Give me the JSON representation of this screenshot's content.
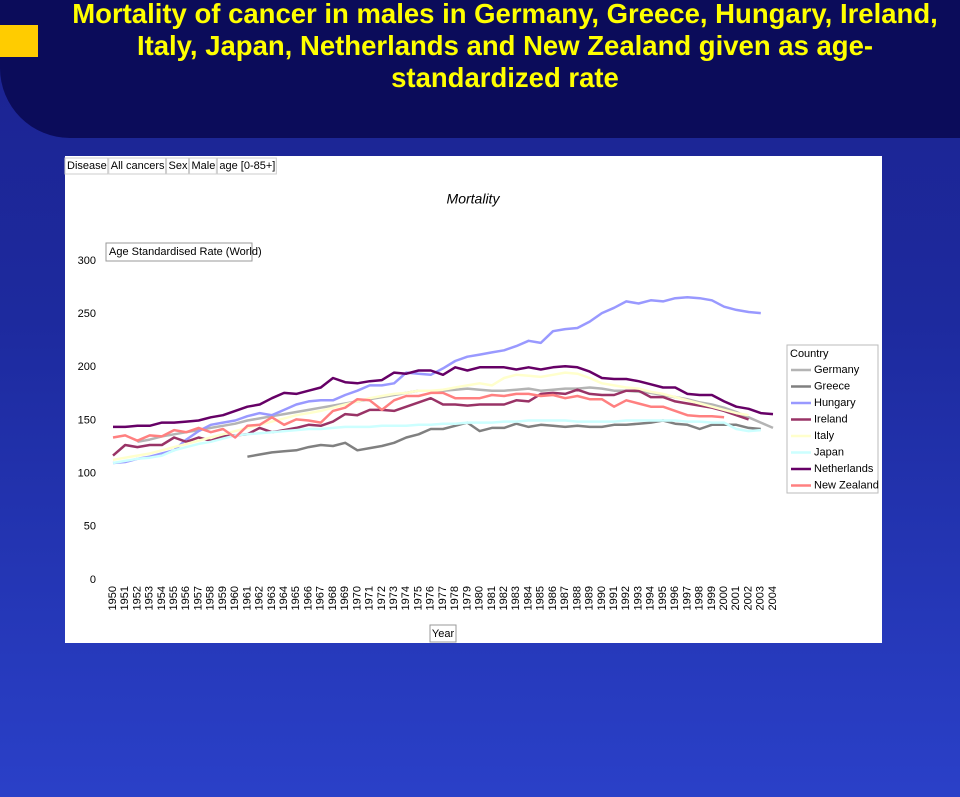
{
  "chart_data": {
    "type": "line",
    "title": "Mortality of cancer in males in Germany, Greece, Hungary, Ireland, Italy, Japan, Netherlands and New Zealand  given as age-standardized rate",
    "filters": [
      "Disease",
      "All cancers",
      "Sex",
      "Male",
      "age [0-85+]"
    ],
    "subtitle": "Mortality",
    "ylabel": "Age Standardised Rate (World)",
    "xlabel": "Year",
    "legend_title": "Country",
    "categories": [
      "1950",
      "1951",
      "1952",
      "1953",
      "1954",
      "1955",
      "1956",
      "1957",
      "1958",
      "1959",
      "1960",
      "1961",
      "1962",
      "1963",
      "1964",
      "1965",
      "1966",
      "1967",
      "1968",
      "1969",
      "1970",
      "1971",
      "1972",
      "1973",
      "1974",
      "1975",
      "1976",
      "1977",
      "1978",
      "1979",
      "1980",
      "1981",
      "1982",
      "1983",
      "1984",
      "1985",
      "1986",
      "1987",
      "1988",
      "1989",
      "1990",
      "1991",
      "1992",
      "1993",
      "1994",
      "1995",
      "1996",
      "1997",
      "1998",
      "1999",
      "2000",
      "2001",
      "2002",
      "2003",
      "2004"
    ],
    "ylim": [
      0,
      300
    ],
    "yticks": [
      0,
      50,
      100,
      150,
      200,
      250,
      300
    ],
    "series": [
      {
        "name": "Germany",
        "color": "#b4b4b4",
        "values": [
          null,
          null,
          130,
          132,
          135,
          137,
          139,
          141,
          143,
          145,
          147,
          150,
          152,
          154,
          156,
          158,
          160,
          162,
          164,
          166,
          168,
          170,
          172,
          174,
          176,
          178,
          178,
          178,
          179,
          180,
          179,
          178,
          178,
          179,
          180,
          178,
          179,
          180,
          180,
          181,
          180,
          178,
          178,
          177,
          176,
          174,
          172,
          170,
          167,
          165,
          162,
          158,
          153,
          148,
          143
        ]
      },
      {
        "name": "Greece",
        "color": "#808080",
        "values": [
          null,
          null,
          null,
          null,
          null,
          null,
          null,
          null,
          null,
          null,
          null,
          116,
          118,
          120,
          121,
          122,
          125,
          127,
          126,
          129,
          122,
          124,
          126,
          129,
          134,
          137,
          142,
          142,
          145,
          148,
          140,
          143,
          143,
          147,
          144,
          146,
          145,
          144,
          145,
          144,
          144,
          146,
          146,
          147,
          148,
          150,
          147,
          146,
          142,
          146,
          146,
          146,
          143,
          142,
          null
        ]
      },
      {
        "name": "Hungary",
        "color": "#9999ff",
        "values": [
          110,
          111,
          114,
          116,
          119,
          122,
          132,
          140,
          146,
          148,
          150,
          154,
          157,
          155,
          160,
          165,
          168,
          169,
          169,
          174,
          178,
          183,
          183,
          185,
          195,
          194,
          193,
          199,
          206,
          210,
          212,
          214,
          216,
          220,
          225,
          223,
          234,
          236,
          237,
          243,
          251,
          256,
          262,
          260,
          263,
          262,
          265,
          266,
          265,
          263,
          257,
          254,
          252,
          251,
          null
        ]
      },
      {
        "name": "Ireland",
        "color": "#993366",
        "values": [
          117,
          127,
          125,
          127,
          127,
          134,
          130,
          134,
          131,
          135,
          136,
          137,
          143,
          139,
          141,
          143,
          146,
          145,
          149,
          156,
          155,
          160,
          160,
          159,
          163,
          167,
          171,
          165,
          165,
          164,
          165,
          165,
          165,
          169,
          168,
          175,
          176,
          175,
          179,
          175,
          174,
          174,
          178,
          178,
          172,
          172,
          168,
          166,
          164,
          162,
          159,
          155,
          151,
          null,
          null
        ]
      },
      {
        "name": "Italy",
        "color": "#ffffcc",
        "values": [
          113,
          115,
          117,
          119,
          122,
          125,
          128,
          131,
          134,
          137,
          140,
          143,
          146,
          149,
          152,
          155,
          157,
          159,
          162,
          165,
          168,
          171,
          173,
          175,
          176,
          178,
          178,
          179,
          181,
          183,
          185,
          183,
          190,
          193,
          192,
          191,
          193,
          195,
          194,
          190,
          185,
          183,
          181,
          180,
          177,
          175,
          172,
          169,
          166,
          163,
          160,
          157,
          155,
          null,
          null
        ]
      },
      {
        "name": "Japan",
        "color": "#ccffff",
        "values": [
          110,
          112,
          114,
          115,
          117,
          122,
          125,
          128,
          130,
          133,
          136,
          137,
          138,
          139,
          140,
          141,
          142,
          142,
          143,
          144,
          144,
          144,
          145,
          145,
          145,
          146,
          146,
          147,
          147,
          148,
          148,
          148,
          149,
          149,
          150,
          150,
          150,
          150,
          149,
          149,
          149,
          149,
          150,
          150,
          150,
          150,
          150,
          149,
          149,
          148,
          148,
          142,
          140,
          141,
          null
        ]
      },
      {
        "name": "Netherlands",
        "color": "#660066",
        "values": [
          144,
          144,
          145,
          145,
          148,
          148,
          149,
          150,
          153,
          155,
          159,
          163,
          165,
          171,
          176,
          175,
          178,
          181,
          190,
          186,
          185,
          187,
          188,
          195,
          194,
          197,
          197,
          193,
          200,
          197,
          200,
          200,
          200,
          198,
          200,
          198,
          200,
          201,
          200,
          196,
          190,
          189,
          189,
          187,
          184,
          181,
          181,
          175,
          174,
          174,
          168,
          163,
          161,
          157,
          156
        ]
      },
      {
        "name": "New Zealand",
        "color": "#ff8080",
        "values": [
          134,
          136,
          131,
          136,
          135,
          141,
          139,
          143,
          139,
          142,
          134,
          145,
          146,
          153,
          146,
          151,
          150,
          148,
          159,
          162,
          170,
          169,
          160,
          169,
          173,
          173,
          176,
          176,
          171,
          171,
          171,
          174,
          173,
          175,
          175,
          173,
          174,
          171,
          173,
          170,
          170,
          163,
          169,
          166,
          163,
          163,
          159,
          155,
          154,
          154,
          153,
          null,
          null,
          null,
          null
        ]
      }
    ]
  }
}
